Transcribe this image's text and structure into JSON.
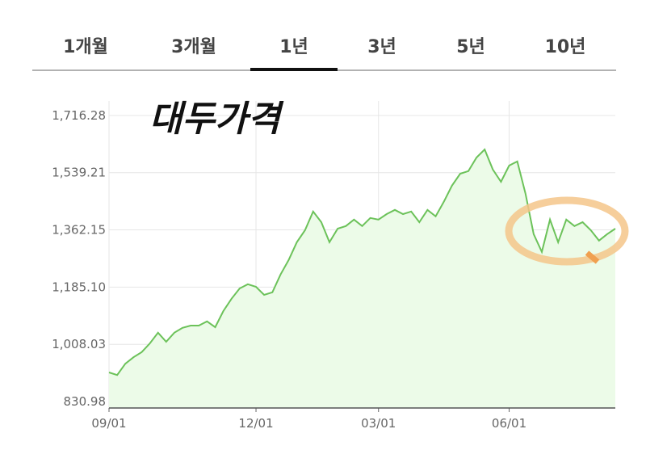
{
  "tabs": [
    "1개월",
    "3개월",
    "1년",
    "3년",
    "5년",
    "10년"
  ],
  "selected_tab": 2,
  "chart_data": {
    "type": "line",
    "annotation": "대두가격",
    "color": "#6cc25a",
    "fill": "#ecfbe8",
    "grid": true,
    "values": [
      921,
      913,
      948,
      968,
      984,
      1011,
      1044,
      1016,
      1044,
      1059,
      1066,
      1066,
      1079,
      1061,
      1111,
      1149,
      1181,
      1194,
      1186,
      1161,
      1169,
      1224,
      1269,
      1324,
      1361,
      1419,
      1386,
      1324,
      1366,
      1374,
      1394,
      1374,
      1399,
      1394,
      1411,
      1424,
      1411,
      1419,
      1386,
      1424,
      1404,
      1449,
      1499,
      1536,
      1544,
      1586,
      1611,
      1549,
      1511,
      1561,
      1574,
      1474,
      1349,
      1294,
      1394,
      1324,
      1394,
      1374,
      1386,
      1361,
      1329,
      1349,
      1366
    ],
    "xlim": [
      0,
      62
    ],
    "xticks": [
      {
        "value": 0,
        "label": "09/01"
      },
      {
        "value": 18,
        "label": "12/01"
      },
      {
        "value": 33,
        "label": "03/01"
      },
      {
        "value": 49,
        "label": "06/01"
      }
    ],
    "ylim": [
      811,
      1761
    ],
    "yticks": [
      830.98,
      {
        "value": 1008.03,
        "label": "1,008.03"
      },
      {
        "value": 1185.1,
        "label": "1,185.10"
      },
      {
        "value": 1362.15,
        "label": "1,362.15"
      },
      {
        "value": 1539.21,
        "label": "1,539.21"
      },
      {
        "value": 1716.28,
        "label": "1,716.28"
      }
    ]
  }
}
